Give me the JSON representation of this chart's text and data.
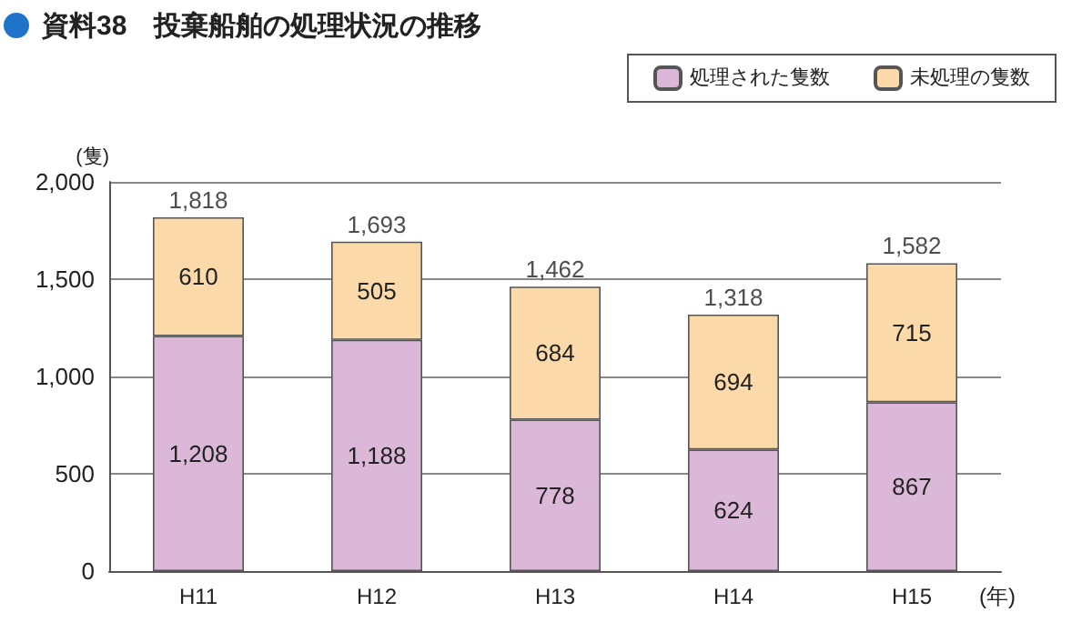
{
  "chart_data": {
    "type": "bar",
    "title": "資料38　投棄船舶の処理状況の推移",
    "ylabel": "(隻)",
    "xlabel": "(年)",
    "categories": [
      "H11",
      "H12",
      "H13",
      "H14",
      "H15"
    ],
    "stacked": true,
    "series": [
      {
        "name": "処理された隻数",
        "color": "#dcb8d8",
        "values": [
          1208,
          1188,
          778,
          624,
          867
        ],
        "value_labels": [
          "1,208",
          "1,188",
          "778",
          "624",
          "867"
        ]
      },
      {
        "name": "未処理の隻数",
        "color": "#fcd9a8",
        "values": [
          610,
          505,
          684,
          694,
          715
        ],
        "value_labels": [
          "610",
          "505",
          "684",
          "694",
          "715"
        ]
      }
    ],
    "totals": [
      "1,818",
      "1,693",
      "1,462",
      "1,318",
      "1,582"
    ],
    "ylim": [
      0,
      2000
    ],
    "yticks": [
      {
        "value": 0,
        "label": "0"
      },
      {
        "value": 500,
        "label": "500"
      },
      {
        "value": 1000,
        "label": "1,000"
      },
      {
        "value": 1500,
        "label": "1,500"
      },
      {
        "value": 2000,
        "label": "2,000"
      }
    ],
    "grid": "y",
    "legend": "top right"
  }
}
